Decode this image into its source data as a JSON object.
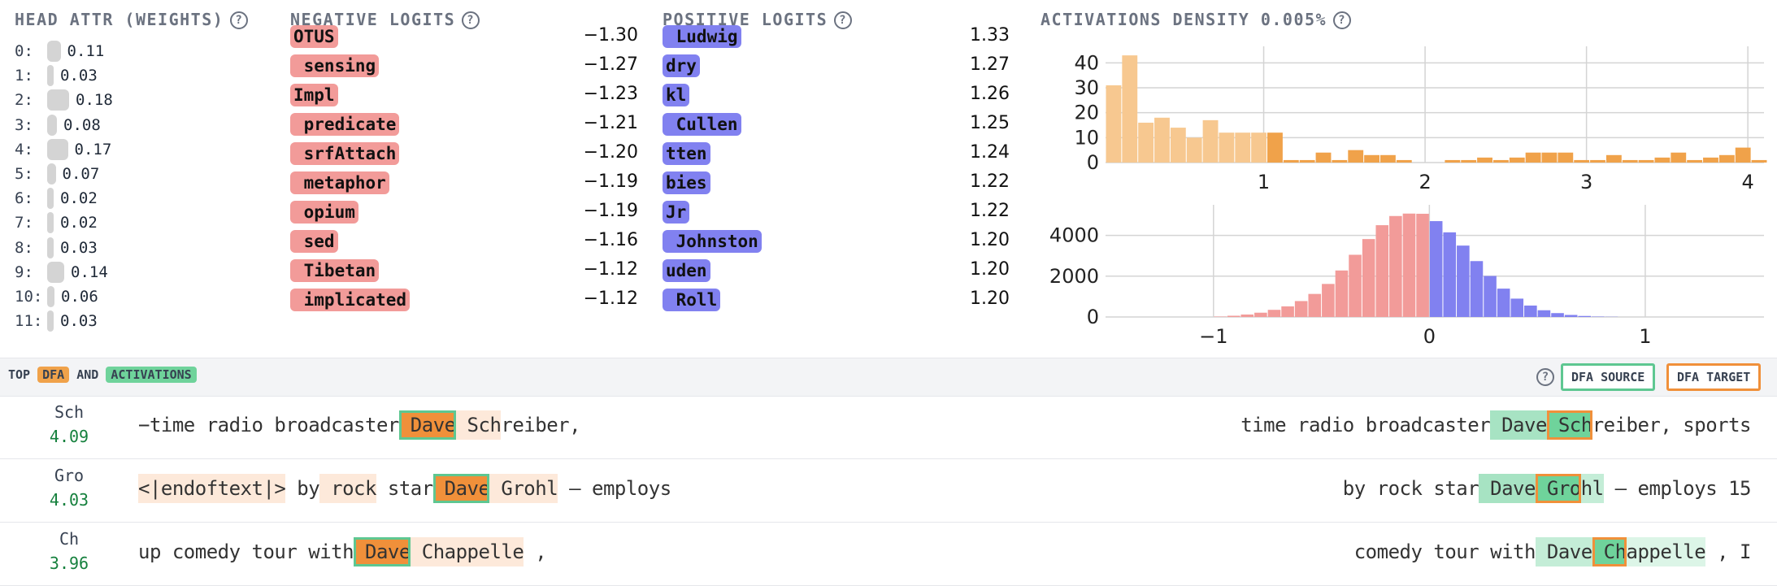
{
  "head_attr": {
    "title": "HEAD ATTR (WEIGHTS)",
    "rows": [
      {
        "idx": "0:",
        "val": "0.11",
        "w": 0.11
      },
      {
        "idx": "1:",
        "val": "0.03",
        "w": 0.03
      },
      {
        "idx": "2:",
        "val": "0.18",
        "w": 0.18
      },
      {
        "idx": "3:",
        "val": "0.08",
        "w": 0.08
      },
      {
        "idx": "4:",
        "val": "0.17",
        "w": 0.17
      },
      {
        "idx": "5:",
        "val": "0.07",
        "w": 0.07
      },
      {
        "idx": "6:",
        "val": "0.02",
        "w": 0.02
      },
      {
        "idx": "7:",
        "val": "0.02",
        "w": 0.02
      },
      {
        "idx": "8:",
        "val": "0.03",
        "w": 0.03
      },
      {
        "idx": "9:",
        "val": "0.14",
        "w": 0.14
      },
      {
        "idx": "10:",
        "val": "0.06",
        "w": 0.06
      },
      {
        "idx": "11:",
        "val": "0.03",
        "w": 0.03
      }
    ]
  },
  "negative_logits": {
    "title": "NEGATIVE LOGITS",
    "rows": [
      {
        "tok": "OTUS",
        "val": "−1.30"
      },
      {
        "tok": " sensing",
        "val": "−1.27"
      },
      {
        "tok": "Impl",
        "val": "−1.23"
      },
      {
        "tok": " predicate",
        "val": "−1.21"
      },
      {
        "tok": " srfAttach",
        "val": "−1.20"
      },
      {
        "tok": " metaphor",
        "val": "−1.19"
      },
      {
        "tok": " opium",
        "val": "−1.19"
      },
      {
        "tok": " sed",
        "val": "−1.16"
      },
      {
        "tok": " Tibetan",
        "val": "−1.12"
      },
      {
        "tok": " implicated",
        "val": "−1.12"
      }
    ]
  },
  "positive_logits": {
    "title": "POSITIVE LOGITS",
    "rows": [
      {
        "tok": " Ludwig",
        "val": "1.33"
      },
      {
        "tok": "dry",
        "val": "1.27"
      },
      {
        "tok": "kl",
        "val": "1.26"
      },
      {
        "tok": " Cullen",
        "val": "1.25"
      },
      {
        "tok": "tten",
        "val": "1.24"
      },
      {
        "tok": "bies",
        "val": "1.22"
      },
      {
        "tok": "Jr",
        "val": "1.22"
      },
      {
        "tok": " Johnston",
        "val": "1.20"
      },
      {
        "tok": "uden",
        "val": "1.20"
      },
      {
        "tok": " Roll",
        "val": "1.20"
      }
    ]
  },
  "density": {
    "title": "ACTIVATIONS DENSITY 0.005%"
  },
  "chart_data": [
    {
      "type": "bar",
      "title": "",
      "xlim": [
        0.02,
        4.1
      ],
      "ylim": [
        0,
        45
      ],
      "x_ticks": [
        "1",
        "2",
        "3",
        "4"
      ],
      "y_ticks": [
        "0",
        "10",
        "20",
        "30",
        "40"
      ],
      "grid": true,
      "bins_start": 0.02,
      "bin_width": 0.1,
      "values": [
        31,
        43,
        16,
        18,
        14,
        10,
        17,
        12,
        12,
        12,
        12,
        1,
        1,
        4,
        1,
        5,
        3,
        3,
        1,
        0,
        0,
        1,
        1,
        2,
        1,
        2,
        4,
        4,
        4,
        1,
        1,
        3,
        1,
        1,
        2,
        4,
        1,
        2,
        3,
        6,
        1,
        0,
        5,
        4,
        3,
        3,
        2,
        1,
        4,
        1,
        4,
        2,
        2,
        1,
        1,
        1,
        1,
        1,
        1,
        2
      ],
      "color_split_x": 1.0,
      "colors": [
        "#f7c890",
        "#f0a24a"
      ]
    },
    {
      "type": "bar",
      "title": "",
      "xlim": [
        -1.5,
        1.55
      ],
      "ylim": [
        0,
        5300
      ],
      "x_ticks": [
        "−1",
        "0",
        "1"
      ],
      "y_ticks": [
        "0",
        "2000",
        "4000"
      ],
      "grid": true,
      "bins_start": -1.0,
      "bin_width": 0.0625,
      "values": [
        20,
        60,
        120,
        210,
        350,
        520,
        780,
        1130,
        1620,
        2280,
        3050,
        3820,
        4500,
        4950,
        5070,
        5060,
        4700,
        4150,
        3500,
        2740,
        2010,
        1390,
        900,
        560,
        330,
        190,
        100,
        50,
        20,
        10
      ],
      "colors": [
        "#f29b99",
        "#8181f0"
      ],
      "color_split_x": 0.0
    }
  ],
  "dfa_bar": {
    "label_top": "TOP",
    "label_dfa": "DFA",
    "label_and": "AND",
    "label_act": "ACTIVATIONS",
    "btn_source": "DFA SOURCE",
    "btn_target": "DFA TARGET",
    "help": "?"
  },
  "activations": [
    {
      "tok": "Sch",
      "val": "4.09",
      "left": [
        [
          "−time",
          "n"
        ],
        [
          " radio",
          "n"
        ],
        [
          " broadcaster",
          "n"
        ],
        [
          " Dave",
          "t"
        ],
        [
          " Sch",
          "l"
        ],
        [
          "reiber,",
          "n"
        ]
      ],
      "right": [
        [
          "time",
          "n"
        ],
        [
          " radio",
          "n"
        ],
        [
          " broadcaster",
          "n"
        ],
        [
          " Dave",
          "g"
        ],
        [
          " Sch",
          "h"
        ],
        [
          "reiber,",
          "n"
        ],
        [
          " sports",
          "n"
        ]
      ]
    },
    {
      "tok": "Gro",
      "val": "4.03",
      "left": [
        [
          "<|endoftext|>",
          "l"
        ],
        [
          " by",
          "n"
        ],
        [
          " rock",
          "l"
        ],
        [
          " star",
          "n"
        ],
        [
          " Dave",
          "t"
        ],
        [
          " Grohl",
          "l"
        ],
        [
          " —",
          "n"
        ],
        [
          " employs",
          "n"
        ]
      ],
      "right": [
        [
          "by",
          "n"
        ],
        [
          " rock",
          "n"
        ],
        [
          " star",
          "n"
        ],
        [
          " Dave",
          "g"
        ],
        [
          " Gro",
          "h"
        ],
        [
          "hl",
          "g2"
        ],
        [
          " —",
          "n"
        ],
        [
          " employs",
          "n"
        ],
        [
          " 15",
          "n"
        ]
      ]
    },
    {
      "tok": "Ch",
      "val": "3.96",
      "left": [
        [
          "up",
          "n"
        ],
        [
          " comedy",
          "n"
        ],
        [
          " tour",
          "n"
        ],
        [
          " with",
          "n"
        ],
        [
          " Dave",
          "t"
        ],
        [
          " Chappelle",
          "l"
        ],
        [
          " ,",
          "n"
        ]
      ],
      "right": [
        [
          "comedy",
          "n"
        ],
        [
          " tour",
          "n"
        ],
        [
          " with",
          "n"
        ],
        [
          " Dave",
          "g2"
        ],
        [
          " Ch",
          "h"
        ],
        [
          "appelle",
          "g3"
        ],
        [
          " ,",
          "n"
        ],
        [
          " I",
          "n"
        ]
      ]
    }
  ]
}
